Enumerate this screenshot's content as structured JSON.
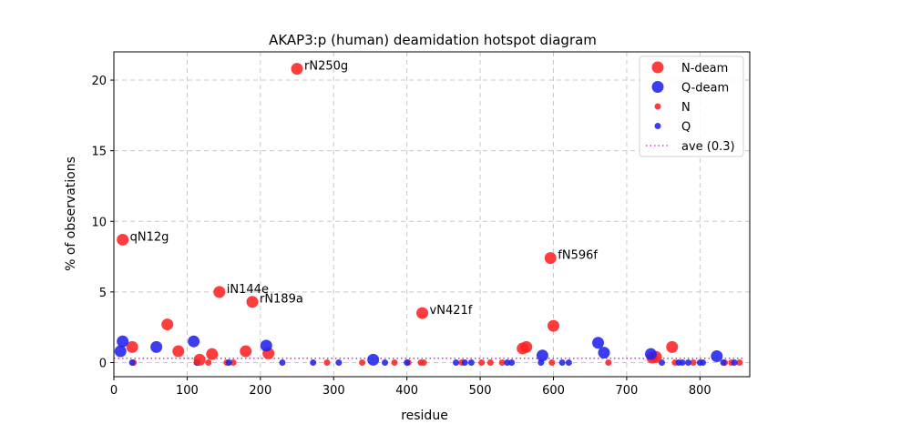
{
  "chart_data": {
    "type": "scatter",
    "title": "AKAP3:p (human) deamidation hotspot diagram",
    "xlabel": "residue",
    "ylabel": "% of observations",
    "xlim": [
      0,
      868
    ],
    "ylim": [
      -1.0,
      22.0
    ],
    "xticks": [
      0,
      100,
      200,
      300,
      400,
      500,
      600,
      700,
      800
    ],
    "yticks": [
      0,
      5,
      10,
      15,
      20
    ],
    "grid": true,
    "legend_position": "top-right",
    "average": {
      "label": "ave (0.3)",
      "value": 0.3,
      "color": "#cc44cc"
    },
    "series": [
      {
        "name": "N-deam",
        "color": "#ff2222",
        "marker": "large",
        "points": [
          [
            12,
            8.7
          ],
          [
            144,
            5.0
          ],
          [
            189,
            4.3
          ],
          [
            250,
            20.8
          ],
          [
            421,
            3.5
          ],
          [
            596,
            7.4
          ],
          [
            25,
            1.1
          ],
          [
            73,
            2.7
          ],
          [
            88,
            0.8
          ],
          [
            117,
            0.2
          ],
          [
            134,
            0.6
          ],
          [
            180,
            0.8
          ],
          [
            211,
            0.65
          ],
          [
            558,
            1.0
          ],
          [
            563,
            1.1
          ],
          [
            600,
            2.6
          ],
          [
            735,
            0.35
          ],
          [
            740,
            0.4
          ],
          [
            762,
            1.1
          ]
        ]
      },
      {
        "name": "Q-deam",
        "color": "#2222ee",
        "marker": "large",
        "points": [
          [
            9,
            0.8
          ],
          [
            12,
            1.5
          ],
          [
            58,
            1.1
          ],
          [
            109,
            1.5
          ],
          [
            208,
            1.2
          ],
          [
            354,
            0.2
          ],
          [
            585,
            0.5
          ],
          [
            661,
            1.4
          ],
          [
            669,
            0.7
          ],
          [
            733,
            0.6
          ],
          [
            823,
            0.45
          ]
        ]
      },
      {
        "name": "N",
        "color": "#ff2222",
        "marker": "small",
        "points": [
          [
            27,
            0
          ],
          [
            113,
            0
          ],
          [
            129,
            0
          ],
          [
            154,
            0
          ],
          [
            163,
            0
          ],
          [
            291,
            0
          ],
          [
            339,
            0
          ],
          [
            383,
            0
          ],
          [
            402,
            0
          ],
          [
            419,
            0
          ],
          [
            423,
            0
          ],
          [
            475,
            0
          ],
          [
            502,
            0
          ],
          [
            514,
            0
          ],
          [
            530,
            0
          ],
          [
            598,
            0
          ],
          [
            675,
            0
          ],
          [
            766,
            0
          ],
          [
            791,
            0
          ],
          [
            834,
            0
          ],
          [
            843,
            0
          ],
          [
            854,
            0
          ]
        ]
      },
      {
        "name": "Q",
        "color": "#2222ee",
        "marker": "small",
        "points": [
          [
            25,
            0
          ],
          [
            114,
            0
          ],
          [
            157,
            0
          ],
          [
            230,
            0
          ],
          [
            272,
            0
          ],
          [
            307,
            0
          ],
          [
            370,
            0
          ],
          [
            400,
            0
          ],
          [
            467,
            0
          ],
          [
            479,
            0
          ],
          [
            488,
            0
          ],
          [
            537,
            0
          ],
          [
            543,
            0
          ],
          [
            583,
            0
          ],
          [
            612,
            0
          ],
          [
            621,
            0
          ],
          [
            748,
            0
          ],
          [
            771,
            0
          ],
          [
            776,
            0
          ],
          [
            784,
            0
          ],
          [
            800,
            0
          ],
          [
            804,
            0
          ],
          [
            832,
            0
          ],
          [
            847,
            0
          ]
        ]
      }
    ],
    "annotations": [
      {
        "text": "qN12g",
        "x": 12,
        "y": 8.7
      },
      {
        "text": "iN144e",
        "x": 144,
        "y": 5.0
      },
      {
        "text": "rN189a",
        "x": 189,
        "y": 4.3
      },
      {
        "text": "rN250g",
        "x": 250,
        "y": 20.8
      },
      {
        "text": "vN421f",
        "x": 421,
        "y": 3.5
      },
      {
        "text": "fN596f",
        "x": 596,
        "y": 7.4
      }
    ]
  }
}
